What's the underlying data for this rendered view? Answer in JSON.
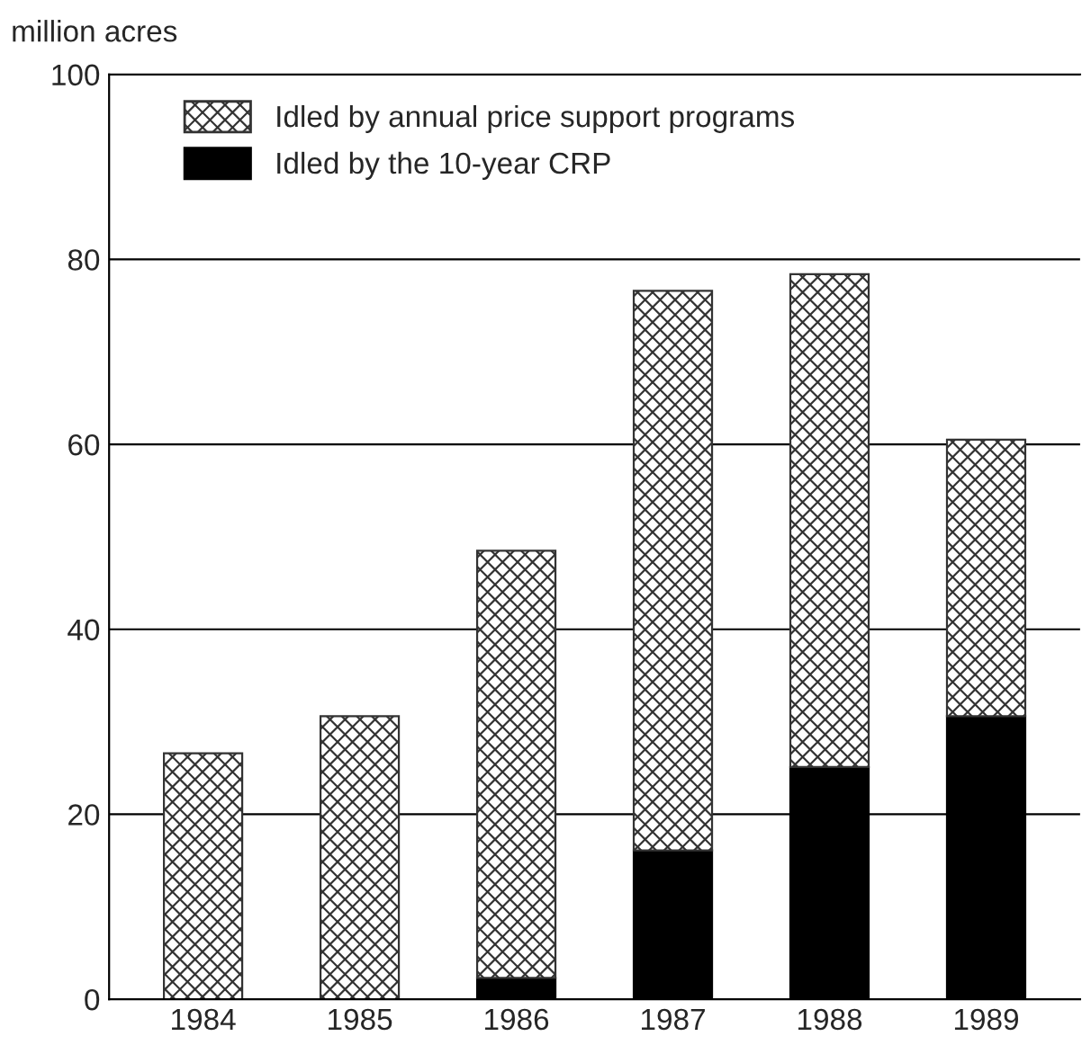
{
  "chart_data": {
    "type": "bar",
    "ylabel": "million acres",
    "categories": [
      "1984",
      "1985",
      "1986",
      "1987",
      "1988",
      "1989"
    ],
    "stacked": true,
    "series": [
      {
        "name": "Idled by the 10-year CRP",
        "color": "#000000",
        "values": [
          0,
          0,
          2.3,
          16.1,
          25.1,
          30.6
        ]
      },
      {
        "name": "Idled by annual price support programs",
        "color": "#333333",
        "values": [
          26.6,
          30.6,
          46.2,
          60.5,
          53.3,
          29.9
        ]
      }
    ],
    "ylim": [
      0,
      100
    ],
    "yticks": [
      0,
      20,
      40,
      60,
      80,
      100
    ],
    "grid": "y",
    "legend": "top left"
  }
}
